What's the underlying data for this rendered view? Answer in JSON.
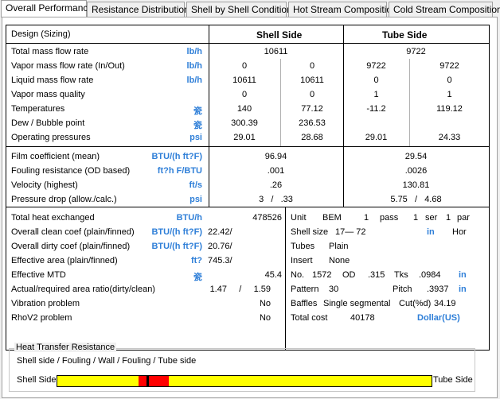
{
  "tabs": [
    "Overall Performance",
    "Resistance Distribution",
    "Shell by Shell Conditions",
    "Hot Stream Composition",
    "Cold Stream Composition"
  ],
  "header": {
    "design": "Design (Sizing)",
    "shell_side": "Shell Side",
    "tube_side": "Tube Side"
  },
  "rows1": [
    {
      "label": "Total mass flow rate",
      "unit": "lb/h",
      "shell": "10611",
      "tube": "9722"
    },
    {
      "label": "Vapor mass flow rate  (In/Out)",
      "unit": "lb/h",
      "s_in": "0",
      "s_out": "0",
      "t_in": "9722",
      "t_out": "9722"
    },
    {
      "label": "Liquid mass flow rate",
      "unit": "lb/h",
      "s_in": "10611",
      "s_out": "10611",
      "t_in": "0",
      "t_out": "0"
    },
    {
      "label": "Vapor mass quality",
      "unit": "",
      "s_in": "0",
      "s_out": "0",
      "t_in": "1",
      "t_out": "1"
    },
    {
      "label": "Temperatures",
      "unit": "瓷",
      "s_in": "140",
      "s_out": "77.12",
      "t_in": "-11.2",
      "t_out": "119.12"
    },
    {
      "label": "Dew / Bubble point",
      "unit": "瓷",
      "s_in": "300.39",
      "s_out": "236.53",
      "t_in": "",
      "t_out": ""
    },
    {
      "label": "Operating pressures",
      "unit": "psi",
      "s_in": "29.01",
      "s_out": "28.68",
      "t_in": "29.01",
      "t_out": "24.33"
    }
  ],
  "rows2": [
    {
      "label": "Film coefficient (mean)",
      "unit": "BTU/(h ft?F)",
      "shell": "96.94",
      "tube": "29.54"
    },
    {
      "label": "Fouling resistance (OD based)",
      "unit": "ft?h F/BTU",
      "shell": ".001",
      "tube": ".0026"
    },
    {
      "label": "Velocity (highest)",
      "unit": "ft/s",
      "shell": ".26",
      "tube": "130.81"
    },
    {
      "label": "Pressure drop (allow./calc.)",
      "unit": "psi",
      "shell": "3   /   .33",
      "tube": "5.75   /   4.68"
    }
  ],
  "left3": [
    {
      "label": "Total heat exchanged",
      "unit": "BTU/h",
      "value": "478526"
    },
    {
      "label": "Overall clean coef (plain/finned)",
      "unit": "BTU/(h ft?F)",
      "value": "22.42/"
    },
    {
      "label": "Overall dirty coef (plain/finned)",
      "unit": "BTU/(h ft?F)",
      "value": "20.76/"
    },
    {
      "label": "Effective area (plain/finned)",
      "unit": "ft?",
      "value": "745.3/"
    },
    {
      "label": "Effective MTD",
      "unit": "瓷",
      "value": "45.4"
    },
    {
      "label": "Actual/required area ratio(dirty/clean)",
      "unit": "",
      "value": "1.47     /     1.59"
    },
    {
      "label": "Vibration problem",
      "unit": "",
      "value": "No"
    },
    {
      "label": "RhoV2 problem",
      "unit": "",
      "value": "No"
    }
  ],
  "right3": {
    "unit_row": [
      "Unit",
      "BEM",
      "1",
      "pass",
      "1",
      "ser",
      "1",
      "par"
    ],
    "shell_size": [
      "Shell size",
      "17—  72",
      "in",
      "Hor"
    ],
    "tubes": [
      "Tubes",
      "Plain"
    ],
    "insert": [
      "Insert",
      "None"
    ],
    "no_row": [
      "No.",
      "1572",
      "OD",
      ".315",
      "Tks",
      ".0984",
      "in"
    ],
    "pattern": [
      "Pattern",
      "30",
      "Pitch",
      ".3937",
      "in"
    ],
    "baffles": [
      "Baffles",
      "Single segmental",
      "Cut(%d)",
      "34.19"
    ],
    "cost": [
      "Total cost",
      "40178",
      "Dollar(US)"
    ]
  },
  "htr": {
    "title": "Heat Transfer Resistance",
    "subtitle": "Shell side / Fouling / Wall / Fouling / Tube side",
    "left_label": "Shell Side",
    "right_label": "Tube Side",
    "segments": [
      {
        "name": "shell-side",
        "fraction": 0.218,
        "color": "#ffff00"
      },
      {
        "name": "fouling-shell",
        "fraction": 0.021,
        "color": "#ff0000"
      },
      {
        "name": "wall",
        "fraction": 0.006,
        "color": "#000000"
      },
      {
        "name": "fouling-tube",
        "fraction": 0.053,
        "color": "#ff0000"
      },
      {
        "name": "tube-side",
        "fraction": 0.702,
        "color": "#ffff00"
      }
    ]
  },
  "colors": {
    "unit": "#2f7fd8"
  }
}
